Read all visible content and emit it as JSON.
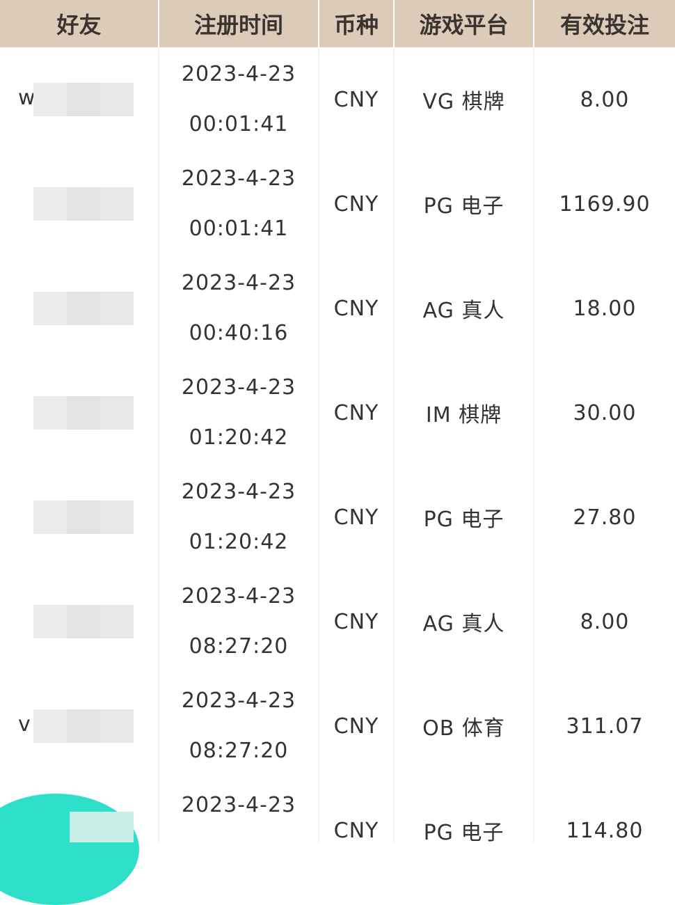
{
  "headers": {
    "friend": "好友",
    "reg_time": "注册时间",
    "currency": "币种",
    "platform": "游戏平台",
    "valid_bet": "有效投注"
  },
  "rows": [
    {
      "friend": "wex1",
      "date": "2023-4-23",
      "time": "00:01:41",
      "currency": "CNY",
      "platform": "VG 棋牌",
      "bet": "8.00"
    },
    {
      "friend": "",
      "date": "2023-4-23",
      "time": "00:01:41",
      "currency": "CNY",
      "platform": "PG 电子",
      "bet": "1169.90"
    },
    {
      "friend": "",
      "date": "2023-4-23",
      "time": "00:40:16",
      "currency": "CNY",
      "platform": "AG 真人",
      "bet": "18.00"
    },
    {
      "friend": "",
      "date": "2023-4-23",
      "time": "01:20:42",
      "currency": "CNY",
      "platform": "IM 棋牌",
      "bet": "30.00"
    },
    {
      "friend": "",
      "date": "2023-4-23",
      "time": "01:20:42",
      "currency": "CNY",
      "platform": "PG 电子",
      "bet": "27.80"
    },
    {
      "friend": "",
      "date": "2023-4-23",
      "time": "08:27:20",
      "currency": "CNY",
      "platform": "AG 真人",
      "bet": "8.00"
    },
    {
      "friend": "v",
      "date": "2023-4-23",
      "time": "08:27:20",
      "currency": "CNY",
      "platform": "OB 体育",
      "bet": "311.07"
    },
    {
      "friend": "",
      "date": "2023-4-23",
      "time": "",
      "currency": "CNY",
      "platform": "PG 电子",
      "bet": "114.80"
    }
  ],
  "colors": {
    "header_bg": "#dccbb8",
    "accent": "#2ee0c9"
  }
}
